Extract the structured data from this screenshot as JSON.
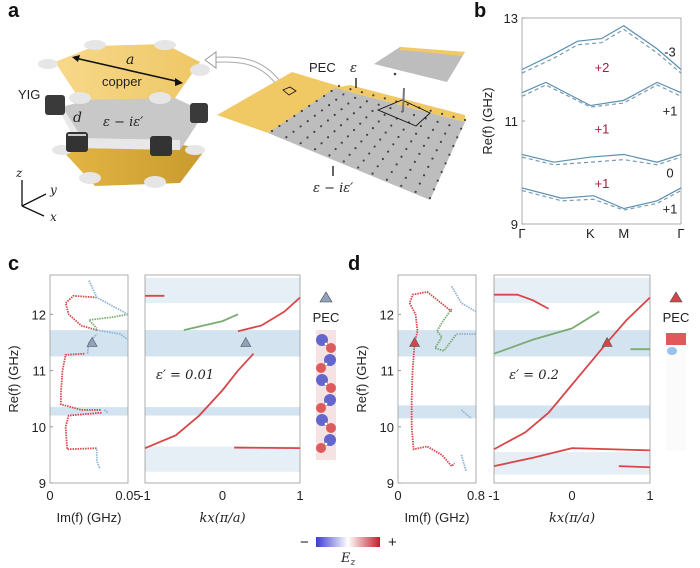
{
  "panel_labels": {
    "a": "a",
    "b": "b",
    "c": "c",
    "d": "d"
  },
  "schematic": {
    "length_label": "a",
    "copper_label": "copper",
    "yig_label": "YIG",
    "diameter_label": "d",
    "unit_cell_permittivity": "ε − iε′",
    "axis_z": "z",
    "axis_y": "y",
    "axis_x": "x",
    "pec_label": "PEC",
    "top_permittivity": "ε",
    "bottom_permittivity": "ε − iε′",
    "colors": {
      "copper": "#f3cf78",
      "gold_dark": "#e0b23c",
      "yig": "#3a3a3a",
      "dielectric": "#b9b9b9"
    }
  },
  "colorbar": {
    "minus": "−",
    "plus": "+",
    "label": "E",
    "label_sub": "z",
    "colors": [
      "#3b3bd0",
      "#ffffff",
      "#c0202a"
    ]
  },
  "chart_data": [
    {
      "id": "b",
      "type": "line",
      "ylabel": "Re(f) (GHz)",
      "ylim": [
        9,
        13
      ],
      "yticks": [
        "13",
        "11",
        "9"
      ],
      "xticks": [
        "Γ",
        "K",
        "M",
        "Γ"
      ],
      "series": [
        {
          "style": "solid",
          "points": [
            [
              0,
              12.0
            ],
            [
              0.2,
              12.3
            ],
            [
              0.35,
              12.55
            ],
            [
              0.5,
              12.6
            ],
            [
              0.64,
              12.85
            ],
            [
              0.85,
              12.4
            ],
            [
              1,
              12.0
            ]
          ]
        },
        {
          "style": "dashed",
          "points": [
            [
              0,
              11.93
            ],
            [
              0.2,
              12.22
            ],
            [
              0.35,
              12.48
            ],
            [
              0.5,
              12.52
            ],
            [
              0.64,
              12.78
            ],
            [
              0.85,
              12.32
            ],
            [
              1,
              11.93
            ]
          ]
        },
        {
          "style": "solid",
          "points": [
            [
              0,
              11.55
            ],
            [
              0.15,
              11.75
            ],
            [
              0.43,
              11.3
            ],
            [
              0.64,
              11.4
            ],
            [
              0.85,
              11.75
            ],
            [
              1,
              11.55
            ]
          ]
        },
        {
          "style": "dashed",
          "points": [
            [
              0,
              11.48
            ],
            [
              0.15,
              11.7
            ],
            [
              0.43,
              11.27
            ],
            [
              0.64,
              11.35
            ],
            [
              0.85,
              11.7
            ],
            [
              1,
              11.48
            ]
          ]
        },
        {
          "style": "solid",
          "points": [
            [
              0,
              10.35
            ],
            [
              0.2,
              10.2
            ],
            [
              0.43,
              10.3
            ],
            [
              0.64,
              10.35
            ],
            [
              0.85,
              10.2
            ],
            [
              1,
              10.35
            ]
          ]
        },
        {
          "style": "dashed",
          "points": [
            [
              0,
              10.3
            ],
            [
              0.2,
              10.15
            ],
            [
              0.43,
              10.2
            ],
            [
              0.64,
              10.25
            ],
            [
              0.85,
              10.15
            ],
            [
              1,
              10.3
            ]
          ]
        },
        {
          "style": "solid",
          "points": [
            [
              0,
              9.7
            ],
            [
              0.25,
              9.5
            ],
            [
              0.45,
              9.55
            ],
            [
              0.64,
              9.3
            ],
            [
              0.85,
              9.45
            ],
            [
              1,
              9.7
            ]
          ]
        },
        {
          "style": "dashed",
          "points": [
            [
              0,
              9.65
            ],
            [
              0.25,
              9.45
            ],
            [
              0.45,
              9.48
            ],
            [
              0.64,
              9.27
            ],
            [
              0.85,
              9.4
            ],
            [
              1,
              9.65
            ]
          ]
        }
      ],
      "chern_numbers": [
        {
          "text": "-3",
          "f": 12.35
        },
        {
          "text": "+1",
          "f": 11.2
        },
        {
          "text": "0",
          "f": 10.0
        },
        {
          "text": "+1",
          "f": 9.3
        }
      ],
      "gap_chern_numbers": [
        {
          "text": "+2",
          "f": 12.05
        },
        {
          "text": "+1",
          "f": 10.85
        },
        {
          "text": "+1",
          "f": 9.8
        }
      ]
    },
    {
      "id": "c-left",
      "type": "scatter",
      "xlabel": "Im(f) (GHz)",
      "ylabel": "Re(f) (GHz)",
      "xlim": [
        0,
        0.05
      ],
      "ylim": [
        9,
        12.7
      ],
      "xticks": [
        "0",
        "0.05"
      ],
      "yticks": [
        "9",
        "10",
        "11",
        "12"
      ],
      "bulk_gaps": [
        [
          11.25,
          11.72
        ],
        [
          10.2,
          10.35
        ]
      ],
      "series": [
        {
          "color": "red",
          "points": [
            [
              0.03,
              12.3
            ],
            [
              0.015,
              12.33
            ],
            [
              0.01,
              12.2
            ],
            [
              0.012,
              12.0
            ],
            [
              0.02,
              11.8
            ],
            [
              0.03,
              11.72
            ]
          ]
        },
        {
          "color": "red",
          "points": [
            [
              0.022,
              11.3
            ],
            [
              0.01,
              11.28
            ],
            [
              0.008,
              11.0
            ],
            [
              0.007,
              10.6
            ],
            [
              0.007,
              10.4
            ],
            [
              0.02,
              10.3
            ],
            [
              0.033,
              10.3
            ]
          ]
        },
        {
          "color": "red",
          "points": [
            [
              0.033,
              10.25
            ],
            [
              0.012,
              10.2
            ],
            [
              0.01,
              10.0
            ],
            [
              0.011,
              9.6
            ],
            [
              0.03,
              9.62
            ]
          ]
        },
        {
          "color": "green",
          "points": [
            [
              0.05,
              12.0
            ],
            [
              0.04,
              11.95
            ],
            [
              0.025,
              11.9
            ],
            [
              0.03,
              11.75
            ]
          ]
        },
        {
          "color": "blue",
          "points": [
            [
              0.025,
              12.6
            ],
            [
              0.03,
              12.3
            ],
            [
              0.05,
              12.0
            ]
          ]
        },
        {
          "color": "blue",
          "points": [
            [
              0.03,
              11.72
            ],
            [
              0.045,
              11.65
            ],
            [
              0.05,
              11.55
            ]
          ]
        },
        {
          "color": "blue",
          "points": [
            [
              0.024,
              11.3
            ],
            [
              0.025,
              11.5
            ],
            [
              0.03,
              11.65
            ]
          ]
        },
        {
          "color": "blue",
          "points": [
            [
              0.035,
              10.3
            ],
            [
              0.037,
              10.25
            ]
          ]
        },
        {
          "color": "blue",
          "points": [
            [
              0.03,
              9.6
            ],
            [
              0.03,
              9.4
            ],
            [
              0.032,
              9.25
            ]
          ]
        }
      ],
      "marker": [
        0.027,
        11.5
      ]
    },
    {
      "id": "c-right",
      "type": "line",
      "xlabel": "kx(π/a)",
      "xlim": [
        -1,
        1
      ],
      "ylim": [
        9,
        12.7
      ],
      "xticks": [
        "-1",
        "0",
        "1"
      ],
      "annotation": "ε′ = 0.01",
      "bulk_gaps": [
        [
          11.25,
          11.72
        ],
        [
          10.2,
          10.35
        ]
      ],
      "bulk_bands": [
        [
          12.2,
          12.65
        ],
        [
          9.2,
          9.65
        ]
      ],
      "series": [
        {
          "color": "red",
          "points": [
            [
              -1,
              9.62
            ],
            [
              -0.6,
              9.85
            ],
            [
              -0.3,
              10.2
            ],
            [
              0,
              10.65
            ],
            [
              0.2,
              11.0
            ],
            [
              0.4,
              11.3
            ]
          ]
        },
        {
          "color": "red",
          "points": [
            [
              0.2,
              11.7
            ],
            [
              0.5,
              11.8
            ],
            [
              0.8,
              12.05
            ],
            [
              1,
              12.3
            ]
          ]
        },
        {
          "color": "red",
          "points": [
            [
              -1,
              12.33
            ],
            [
              -0.75,
              12.33
            ]
          ]
        },
        {
          "color": "red",
          "points": [
            [
              0.15,
              9.63
            ],
            [
              1,
              9.62
            ]
          ]
        },
        {
          "color": "green",
          "points": [
            [
              -0.5,
              11.72
            ],
            [
              0,
              11.88
            ],
            [
              0.2,
              12.0
            ]
          ]
        }
      ],
      "marker": [
        0.3,
        11.5
      ],
      "marker_label": "PEC",
      "marker_color": "#8fa3bd"
    },
    {
      "id": "d-left",
      "type": "scatter",
      "xlabel": "Im(f) (GHz)",
      "ylabel": "Re(f) (GHz)",
      "xlim": [
        0,
        0.8
      ],
      "ylim": [
        9,
        12.7
      ],
      "xticks": [
        "0",
        "0.8"
      ],
      "yticks": [
        "9",
        "10",
        "11",
        "12"
      ],
      "bulk_gaps": [
        [
          11.25,
          11.72
        ],
        [
          10.15,
          10.38
        ]
      ],
      "series": [
        {
          "color": "red",
          "points": [
            [
              0.55,
              12.05
            ],
            [
              0.3,
              12.4
            ],
            [
              0.15,
              12.35
            ],
            [
              0.12,
              12.2
            ],
            [
              0.18,
              12.0
            ],
            [
              0.2,
              11.7
            ],
            [
              0.17,
              11.5
            ],
            [
              0.15,
              11.0
            ],
            [
              0.14,
              10.5
            ],
            [
              0.14,
              10.0
            ],
            [
              0.16,
              9.6
            ],
            [
              0.3,
              9.65
            ],
            [
              0.45,
              9.5
            ],
            [
              0.55,
              9.3
            ],
            [
              0.58,
              9.35
            ]
          ]
        },
        {
          "color": "green",
          "points": [
            [
              0.55,
              12.1
            ],
            [
              0.45,
              11.85
            ],
            [
              0.4,
              11.7
            ],
            [
              0.45,
              11.6
            ],
            [
              0.38,
              11.4
            ],
            [
              0.47,
              11.35
            ],
            [
              0.6,
              11.65
            ]
          ]
        },
        {
          "color": "blue",
          "points": [
            [
              0.6,
              11.65
            ],
            [
              0.8,
              11.65
            ]
          ]
        },
        {
          "color": "blue",
          "points": [
            [
              0.55,
              12.5
            ],
            [
              0.65,
              12.2
            ],
            [
              0.8,
              12.05
            ]
          ]
        },
        {
          "color": "blue",
          "points": [
            [
              0.65,
              10.3
            ],
            [
              0.75,
              10.15
            ]
          ]
        },
        {
          "color": "blue",
          "points": [
            [
              0.65,
              9.5
            ],
            [
              0.7,
              9.2
            ]
          ]
        }
      ],
      "marker": [
        0.17,
        11.5
      ]
    },
    {
      "id": "d-right",
      "type": "line",
      "xlabel": "kx(π/a)",
      "xlim": [
        -1,
        1
      ],
      "ylim": [
        9,
        12.7
      ],
      "xticks": [
        "-1",
        "0",
        "1"
      ],
      "annotation": "ε′ = 0.2",
      "bulk_gaps": [
        [
          11.25,
          11.72
        ],
        [
          10.15,
          10.38
        ]
      ],
      "bulk_bands": [
        [
          12.2,
          12.65
        ],
        [
          9.15,
          9.55
        ]
      ],
      "series": [
        {
          "color": "red",
          "points": [
            [
              -1,
              9.6
            ],
            [
              -0.6,
              9.9
            ],
            [
              -0.3,
              10.25
            ],
            [
              0,
              10.75
            ],
            [
              0.3,
              11.25
            ],
            [
              0.45,
              11.5
            ],
            [
              0.7,
              11.9
            ],
            [
              1,
              12.3
            ]
          ]
        },
        {
          "color": "red",
          "points": [
            [
              -1,
              12.35
            ],
            [
              -0.7,
              12.35
            ],
            [
              -0.5,
              12.25
            ],
            [
              -0.3,
              12.1
            ]
          ]
        },
        {
          "color": "red",
          "points": [
            [
              -1,
              9.3
            ],
            [
              -0.5,
              9.45
            ],
            [
              0,
              9.62
            ],
            [
              0.5,
              9.6
            ],
            [
              1,
              9.58
            ]
          ]
        },
        {
          "color": "red",
          "points": [
            [
              0.6,
              9.3
            ],
            [
              1,
              9.28
            ]
          ]
        },
        {
          "color": "green",
          "points": [
            [
              -1,
              11.3
            ],
            [
              -0.5,
              11.55
            ],
            [
              0,
              11.75
            ],
            [
              0.35,
              12.05
            ]
          ]
        },
        {
          "color": "green",
          "points": [
            [
              0.75,
              11.38
            ],
            [
              1,
              11.38
            ]
          ]
        }
      ],
      "marker": [
        0.45,
        11.5
      ],
      "marker_label": "PEC",
      "marker_color": "#d0474a"
    }
  ]
}
